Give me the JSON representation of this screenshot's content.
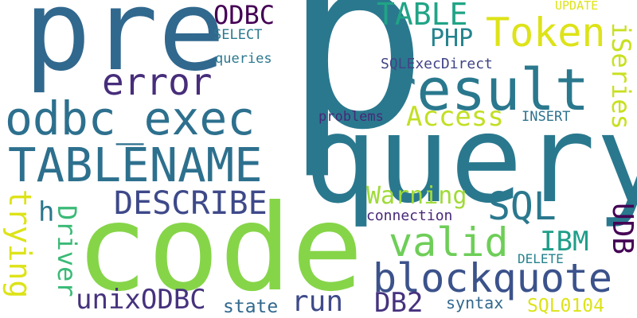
{
  "colors": {
    "background": "#ffffff",
    "p": "#2a788e",
    "query": "#2a788e",
    "code": "#86d549",
    "pre": "#31688e",
    "result": "#2a788e",
    "odbc_exec": "#2d708e",
    "TABLENAME": "#2d708e",
    "error": "#472d7b",
    "Token": "#dde318",
    "blockquote": "#3b528b",
    "valid": "#6ece58",
    "SQL": "#2a788e",
    "DESCRIBE": "#3e4989",
    "TABLE": "#20a486",
    "unixODBC": "#46327e",
    "run": "#3e4a89",
    "DB2": "#46327e",
    "Access": "#c2df23",
    "ODBC": "#440154",
    "PHP": "#25848e",
    "Warning": "#a0da39",
    "IBM": "#1f9e89",
    "h": "#2a788e",
    "state": "#31688e",
    "SQL0104": "#dde318",
    "syntax": "#31688e",
    "connection": "#482878",
    "DELETE": "#26828e",
    "SQLExecDirect": "#414487",
    "SELECT": "#2a788e",
    "queries": "#2a788e",
    "problems": "#482878",
    "INSERT": "#2c728e",
    "UPDATE": "#dde318",
    "iSeries": "#c8e020",
    "UDB": "#440154",
    "trying": "#dde318",
    "Driver": "#3aba76"
  },
  "words": {
    "p": "p",
    "query": "query",
    "code": "code",
    "pre": "pre",
    "result": "result",
    "odbc_exec": "odbc_exec",
    "TABLENAME": "TABLENAME",
    "error": "error",
    "Token": "Token",
    "blockquote": "blockquote",
    "valid": "valid",
    "SQL": "SQL",
    "DESCRIBE": "DESCRIBE",
    "TABLE": "TABLE",
    "unixODBC": "unixODBC",
    "run": "run",
    "DB2": "DB2",
    "Access": "Access",
    "ODBC": "ODBC",
    "PHP": "PHP",
    "Warning": "Warning",
    "IBM": "IBM",
    "h": "h",
    "state": "state",
    "SQL0104": "SQL0104",
    "syntax": "syntax",
    "connection": "connection",
    "DELETE": "DELETE",
    "SQLExecDirect": "SQLExecDirect",
    "SELECT": "SELECT",
    "queries": "queries",
    "problems": "problems",
    "INSERT": "INSERT",
    "UPDATE": "UPDATE",
    "iSeries": "iSeries",
    "UDB": "UDB",
    "trying": "trying",
    "Driver": "Driver"
  }
}
